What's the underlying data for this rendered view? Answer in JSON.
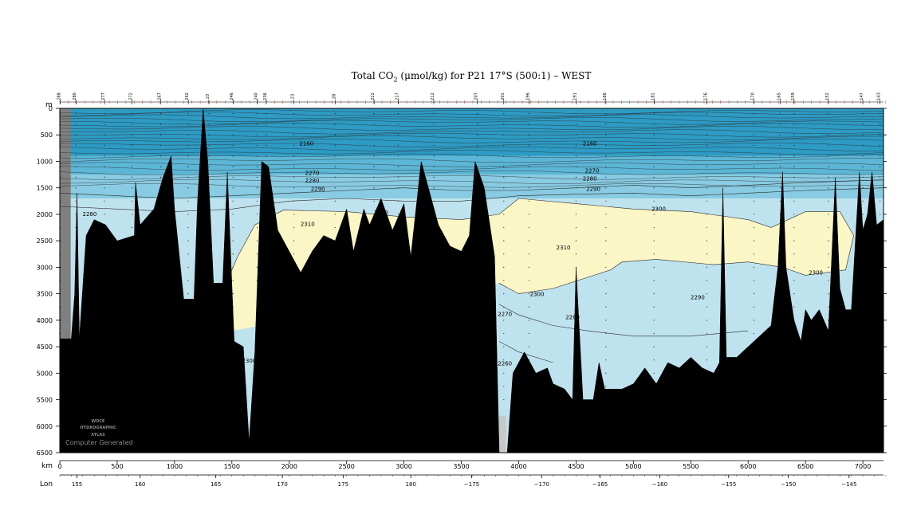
{
  "chart_data": {
    "type": "contour-section",
    "title_main": "Total CO",
    "title_sub": "2",
    "title_rest": " (μmol/kg) for P21 17°S (500:1) – WEST",
    "depth_unit": "m",
    "km_label": "km",
    "lon_label": "Lon",
    "credit": "Computer Generated",
    "logo_lines": [
      "WOCE",
      "HYDROGRAPHIC",
      "ATLAS"
    ],
    "y_ticks": [
      0,
      500,
      1000,
      1500,
      2000,
      2500,
      3000,
      3500,
      4000,
      4500,
      5000,
      5500,
      6000,
      6500
    ],
    "ylim": [
      0,
      6500
    ],
    "xlim_km": [
      0,
      7180
    ],
    "km_ticks": [
      0,
      500,
      1000,
      1500,
      2000,
      2500,
      3000,
      3500,
      4000,
      4500,
      5000,
      5500,
      6000,
      6500,
      7000
    ],
    "lon_ticks": [
      {
        "label": "155",
        "km": 150
      },
      {
        "label": "160",
        "km": 700
      },
      {
        "label": "165",
        "km": 1360
      },
      {
        "label": "170",
        "km": 1940
      },
      {
        "label": "175",
        "km": 2470
      },
      {
        "label": "180",
        "km": 3060
      },
      {
        "label": "−175",
        "km": 3590
      },
      {
        "label": "−170",
        "km": 4200
      },
      {
        "label": "−165",
        "km": 4710
      },
      {
        "label": "−160",
        "km": 5230
      },
      {
        "label": "−155",
        "km": 5830
      },
      {
        "label": "−150",
        "km": 6350
      },
      {
        "label": "−145",
        "km": 6880
      }
    ],
    "stations": [
      {
        "label": "288",
        "km": 5
      },
      {
        "label": "280",
        "km": 140
      },
      {
        "label": "277",
        "km": 390
      },
      {
        "label": "272",
        "km": 630
      },
      {
        "label": "267",
        "km": 880
      },
      {
        "label": "262",
        "km": 1120
      },
      {
        "label": "23",
        "km": 1300
      },
      {
        "label": "246",
        "km": 1510
      },
      {
        "label": "240",
        "km": 1720
      },
      {
        "label": "236",
        "km": 1800
      },
      {
        "label": "23",
        "km": 2040
      },
      {
        "label": "28",
        "km": 2400
      },
      {
        "label": "222",
        "km": 2740
      },
      {
        "label": "217",
        "km": 2950
      },
      {
        "label": "212",
        "km": 3260
      },
      {
        "label": "207",
        "km": 3640
      },
      {
        "label": "201",
        "km": 3870
      },
      {
        "label": "196",
        "km": 4090
      },
      {
        "label": "191",
        "km": 4500
      },
      {
        "label": "186",
        "km": 4760
      },
      {
        "label": "181",
        "km": 5180
      },
      {
        "label": "176",
        "km": 5640
      },
      {
        "label": "170",
        "km": 6050
      },
      {
        "label": "165",
        "km": 6280
      },
      {
        "label": "159",
        "km": 6400
      },
      {
        "label": "152",
        "km": 6700
      },
      {
        "label": "147",
        "km": 7000
      },
      {
        "label": "143",
        "km": 7150
      }
    ],
    "fill_levels": [
      {
        "from": 0,
        "to": 2160,
        "color": "#2d9bc4"
      },
      {
        "from": 2160,
        "to": 2260,
        "color": "#5cb6d6"
      },
      {
        "from": 2260,
        "to": 2280,
        "color": "#88cbe2"
      },
      {
        "from": 2280,
        "to": 2300,
        "color": "#bfe3ee"
      },
      {
        "from": 2300,
        "to": 2400,
        "color": "#fbf6c6"
      }
    ],
    "contour_labels": [
      {
        "value": "2160",
        "km": 2150,
        "depth": 700
      },
      {
        "value": "2160",
        "km": 4620,
        "depth": 700
      },
      {
        "value": "2270",
        "km": 2200,
        "depth": 1260
      },
      {
        "value": "2270",
        "km": 4640,
        "depth": 1210
      },
      {
        "value": "2280",
        "km": 2200,
        "depth": 1400
      },
      {
        "value": "2280",
        "km": 4620,
        "depth": 1360
      },
      {
        "value": "2290",
        "km": 2250,
        "depth": 1560
      },
      {
        "value": "2290",
        "km": 4650,
        "depth": 1560
      },
      {
        "value": "2280",
        "km": 260,
        "depth": 2030
      },
      {
        "value": "2300",
        "km": 2800,
        "depth": 2000
      },
      {
        "value": "2300",
        "km": 5220,
        "depth": 1930
      },
      {
        "value": "2310",
        "km": 2160,
        "depth": 2220
      },
      {
        "value": "2310",
        "km": 4390,
        "depth": 2660
      },
      {
        "value": "2300",
        "km": 4160,
        "depth": 3540
      },
      {
        "value": "2300",
        "km": 6590,
        "depth": 3140
      },
      {
        "value": "2290",
        "km": 5560,
        "depth": 3600
      },
      {
        "value": "2280",
        "km": 4470,
        "depth": 3980
      },
      {
        "value": "2270",
        "km": 3880,
        "depth": 3920
      },
      {
        "value": "2260",
        "km": 3880,
        "depth": 4850
      },
      {
        "value": "2300",
        "km": 1650,
        "depth": 4800
      }
    ],
    "isolines": [
      {
        "value": 2280,
        "points": [
          [
            0,
            1600
          ],
          [
            500,
            1650
          ],
          [
            1000,
            1700
          ],
          [
            1500,
            1650
          ],
          [
            2000,
            1600
          ],
          [
            2500,
            1550
          ],
          [
            3000,
            1500
          ],
          [
            3500,
            1550
          ],
          [
            4000,
            1550
          ],
          [
            4500,
            1500
          ],
          [
            5000,
            1450
          ],
          [
            5500,
            1500
          ],
          [
            6000,
            1450
          ],
          [
            6500,
            1400
          ],
          [
            7180,
            1350
          ]
        ]
      },
      {
        "value": 2290,
        "points": [
          [
            0,
            1850
          ],
          [
            500,
            1900
          ],
          [
            1000,
            1950
          ],
          [
            1500,
            1900
          ],
          [
            2000,
            1750
          ],
          [
            2500,
            1700
          ],
          [
            3000,
            1750
          ],
          [
            3500,
            1750
          ],
          [
            4000,
            1650
          ],
          [
            4500,
            1620
          ],
          [
            5000,
            1600
          ],
          [
            5500,
            1650
          ],
          [
            6000,
            1600
          ],
          [
            6500,
            1550
          ],
          [
            7180,
            1500
          ]
        ]
      },
      {
        "value": 2300,
        "points": [
          [
            1500,
            4200
          ],
          [
            1450,
            3300
          ],
          [
            1550,
            2800
          ],
          [
            1700,
            2200
          ],
          [
            1950,
            1920
          ],
          [
            2500,
            1950
          ],
          [
            3000,
            2050
          ],
          [
            3500,
            2100
          ],
          [
            3830,
            2000
          ],
          [
            4000,
            1700
          ],
          [
            4500,
            1800
          ],
          [
            5000,
            1900
          ],
          [
            5500,
            1950
          ],
          [
            6000,
            2100
          ],
          [
            6200,
            2250
          ],
          [
            6500,
            1950
          ],
          [
            6800,
            1950
          ],
          [
            6920,
            2400
          ],
          [
            6850,
            3050
          ],
          [
            6500,
            3150
          ],
          [
            6300,
            3000
          ],
          [
            6000,
            2900
          ],
          [
            5700,
            2950
          ],
          [
            5200,
            2850
          ],
          [
            4900,
            2900
          ],
          [
            4800,
            3050
          ],
          [
            4300,
            3400
          ],
          [
            4000,
            3500
          ],
          [
            3830,
            3300
          ]
        ]
      },
      {
        "value": 2270,
        "points": [
          [
            3830,
            3700
          ],
          [
            4000,
            3900
          ],
          [
            4300,
            4100
          ],
          [
            4600,
            4200
          ],
          [
            5000,
            4300
          ],
          [
            5500,
            4300
          ],
          [
            6000,
            4200
          ]
        ]
      },
      {
        "value": 2260,
        "points": [
          [
            3830,
            4400
          ],
          [
            4000,
            4600
          ],
          [
            4300,
            4800
          ]
        ]
      }
    ],
    "seafloor_depth": [
      [
        0,
        4350
      ],
      [
        100,
        4350
      ],
      [
        130,
        3500
      ],
      [
        150,
        1600
      ],
      [
        170,
        4350
      ],
      [
        230,
        2400
      ],
      [
        300,
        2100
      ],
      [
        400,
        2200
      ],
      [
        500,
        2500
      ],
      [
        650,
        2400
      ],
      [
        660,
        1400
      ],
      [
        700,
        2200
      ],
      [
        820,
        1900
      ],
      [
        900,
        1300
      ],
      [
        970,
        900
      ],
      [
        1000,
        1900
      ],
      [
        1080,
        3600
      ],
      [
        1170,
        3600
      ],
      [
        1200,
        1800
      ],
      [
        1250,
        0
      ],
      [
        1290,
        1000
      ],
      [
        1340,
        3300
      ],
      [
        1420,
        3300
      ],
      [
        1460,
        1200
      ],
      [
        1520,
        4400
      ],
      [
        1600,
        4500
      ],
      [
        1650,
        6300
      ],
      [
        1700,
        4600
      ],
      [
        1760,
        1000
      ],
      [
        1820,
        1100
      ],
      [
        1900,
        2300
      ],
      [
        2000,
        2700
      ],
      [
        2100,
        3100
      ],
      [
        2200,
        2700
      ],
      [
        2300,
        2400
      ],
      [
        2400,
        2500
      ],
      [
        2500,
        1900
      ],
      [
        2560,
        2700
      ],
      [
        2650,
        1900
      ],
      [
        2700,
        2200
      ],
      [
        2800,
        1700
      ],
      [
        2900,
        2300
      ],
      [
        3000,
        1800
      ],
      [
        3060,
        2800
      ],
      [
        3150,
        1000
      ],
      [
        3200,
        1400
      ],
      [
        3300,
        2200
      ],
      [
        3400,
        2600
      ],
      [
        3500,
        2700
      ],
      [
        3570,
        2400
      ],
      [
        3620,
        1000
      ],
      [
        3700,
        1500
      ],
      [
        3790,
        2800
      ],
      [
        3830,
        6500
      ],
      [
        3900,
        6500
      ],
      [
        3950,
        5000
      ],
      [
        4050,
        4600
      ],
      [
        4150,
        5000
      ],
      [
        4250,
        4900
      ],
      [
        4300,
        5200
      ],
      [
        4400,
        5300
      ],
      [
        4470,
        5500
      ],
      [
        4500,
        3000
      ],
      [
        4560,
        5500
      ],
      [
        4650,
        5500
      ],
      [
        4700,
        4800
      ],
      [
        4750,
        5300
      ],
      [
        4900,
        5300
      ],
      [
        5000,
        5200
      ],
      [
        5100,
        4900
      ],
      [
        5200,
        5200
      ],
      [
        5300,
        4800
      ],
      [
        5400,
        4900
      ],
      [
        5500,
        4700
      ],
      [
        5600,
        4900
      ],
      [
        5700,
        5000
      ],
      [
        5750,
        4800
      ],
      [
        5780,
        1500
      ],
      [
        5810,
        4700
      ],
      [
        5900,
        4700
      ],
      [
        6000,
        4500
      ],
      [
        6100,
        4300
      ],
      [
        6200,
        4100
      ],
      [
        6260,
        3000
      ],
      [
        6300,
        1200
      ],
      [
        6330,
        3000
      ],
      [
        6400,
        4000
      ],
      [
        6460,
        4400
      ],
      [
        6500,
        3800
      ],
      [
        6550,
        4000
      ],
      [
        6620,
        3800
      ],
      [
        6700,
        4200
      ],
      [
        6760,
        1300
      ],
      [
        6800,
        3400
      ],
      [
        6850,
        3800
      ],
      [
        6900,
        3800
      ],
      [
        6970,
        1200
      ],
      [
        7000,
        2300
      ],
      [
        7040,
        2000
      ],
      [
        7080,
        1200
      ],
      [
        7120,
        2200
      ],
      [
        7180,
        2100
      ]
    ]
  }
}
